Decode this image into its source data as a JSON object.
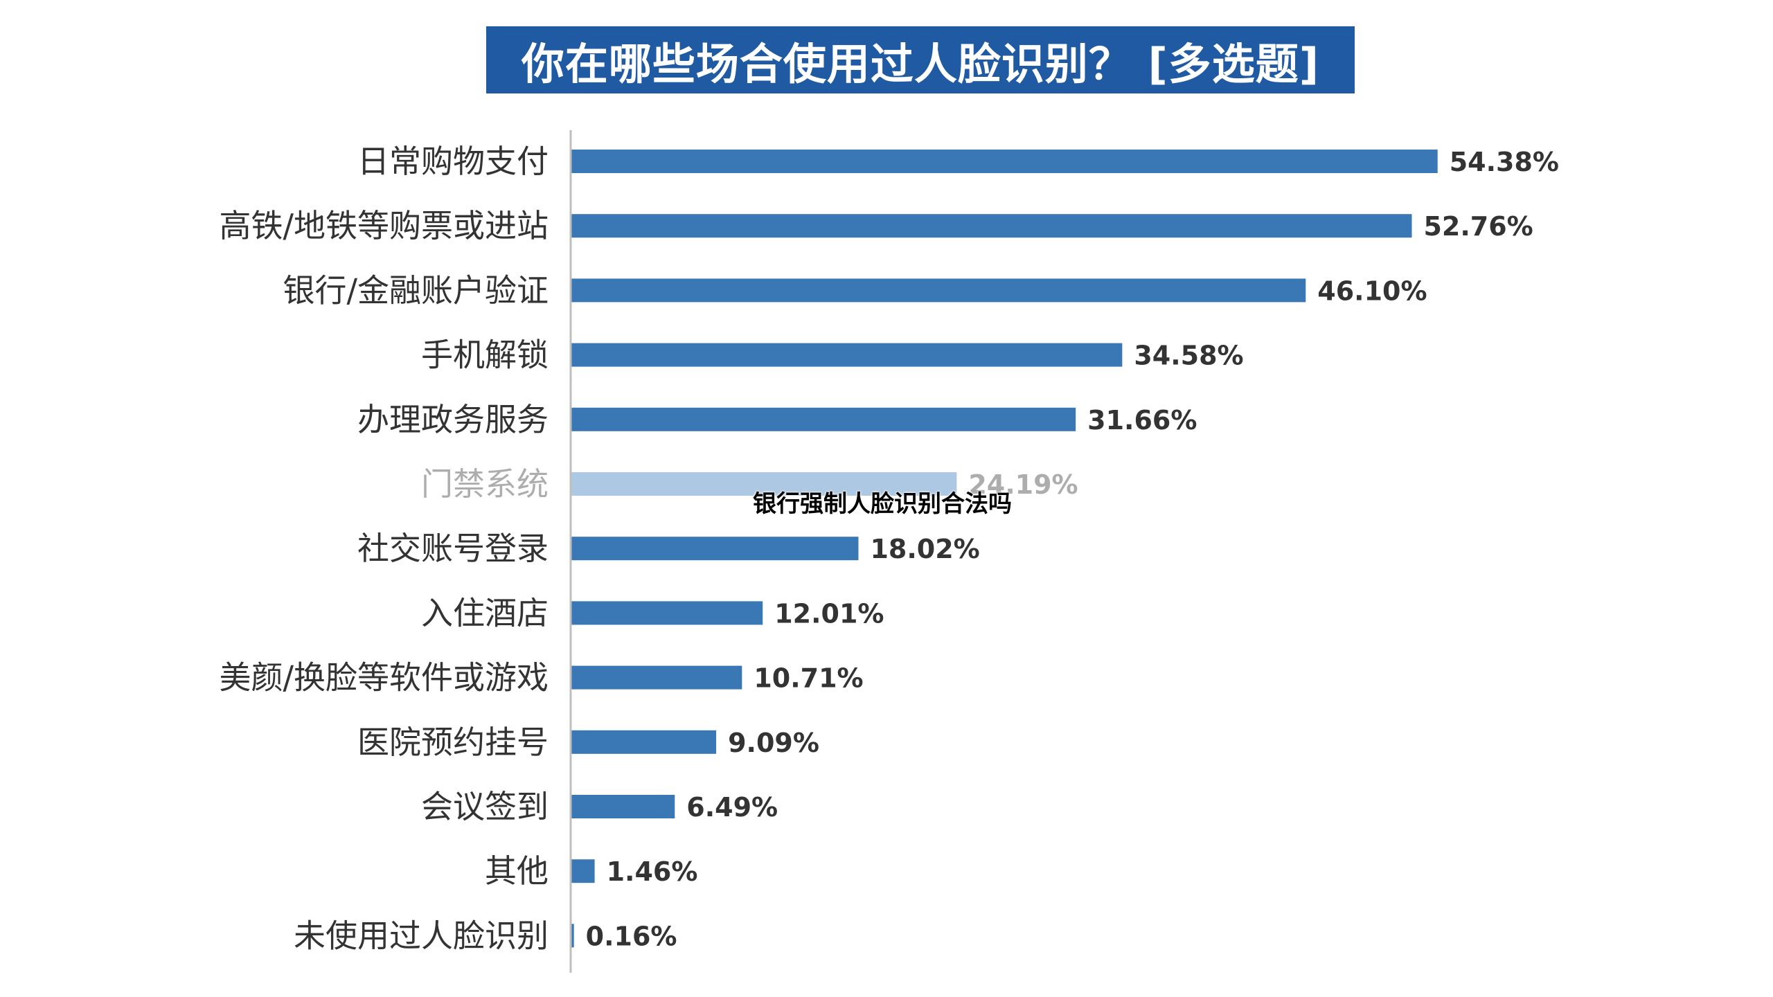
{
  "chart_data": {
    "type": "bar",
    "orientation": "horizontal",
    "title": "你在哪些场合使用过人脸识别？ [多选题]",
    "categories": [
      "日常购物支付",
      "高铁/地铁等购票或进站",
      "银行/金融账户验证",
      "手机解锁",
      "办理政务服务",
      "门禁系统",
      "社交账号登录",
      "入住酒店",
      "美颜/换脸等软件或游戏",
      "医院预约挂号",
      "会议签到",
      "其他",
      "未使用过人脸识别"
    ],
    "values": [
      54.38,
      52.76,
      46.1,
      34.58,
      31.66,
      24.19,
      18.02,
      12.01,
      10.71,
      9.09,
      6.49,
      1.46,
      0.16
    ],
    "value_labels": [
      "54.38%",
      "52.76%",
      "46.10%",
      "34.58%",
      "31.66%",
      "24.19%",
      "18.02%",
      "12.01%",
      "10.71%",
      "9.09%",
      "6.49%",
      "1.46%",
      "0.16%"
    ],
    "unit": "%",
    "xlim": [
      0,
      60
    ],
    "grid": false,
    "legend": "none",
    "bar_color": "#3a78b5",
    "faded_bar_color": "#adc8e2"
  },
  "overlay_caption": "银行强制人脸识别合法吗",
  "colors": {
    "title_background": "#1f5aa3",
    "title_text": "#ffffff",
    "label_text": "#333333"
  }
}
